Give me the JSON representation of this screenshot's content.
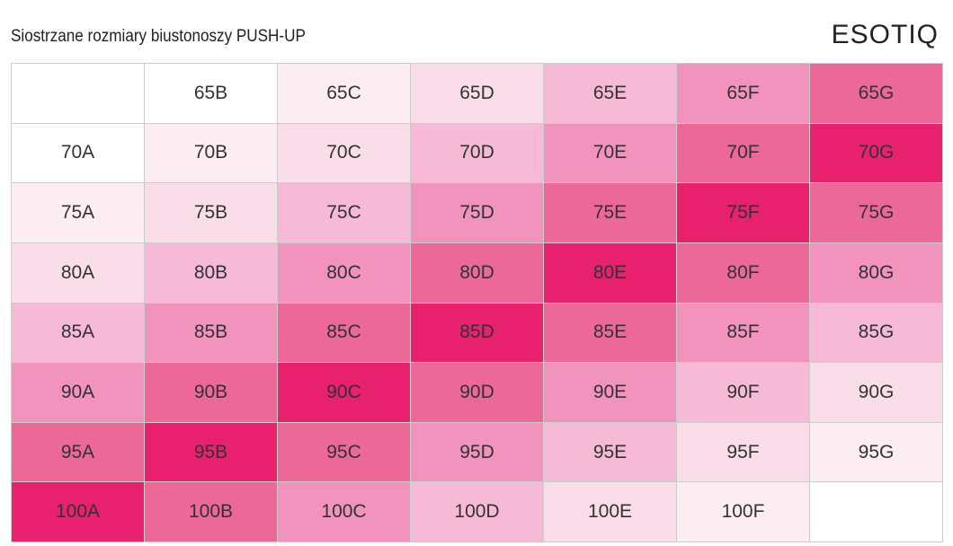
{
  "header": {
    "title": "Siostrzane rozmiary biustonoszy PUSH-UP",
    "logo": "ESOTIQ"
  },
  "table": {
    "rows": [
      [
        null,
        "65B",
        "65C",
        "65D",
        "65E",
        "65F",
        "65G"
      ],
      [
        "70A",
        "70B",
        "70C",
        "70D",
        "70E",
        "70F",
        "70G"
      ],
      [
        "75A",
        "75B",
        "75C",
        "75D",
        "75E",
        "75F",
        "75G"
      ],
      [
        "80A",
        "80B",
        "80C",
        "80D",
        "80E",
        "80F",
        "80G"
      ],
      [
        "85A",
        "85B",
        "85C",
        "85D",
        "85E",
        "85F",
        "85G"
      ],
      [
        "90A",
        "90B",
        "90C",
        "90D",
        "90E",
        "90F",
        "90G"
      ],
      [
        "95A",
        "95B",
        "95C",
        "95D",
        "95E",
        "95F",
        "95G"
      ],
      [
        "100A",
        "100B",
        "100C",
        "100D",
        "100E",
        "100F",
        null
      ]
    ]
  }
}
